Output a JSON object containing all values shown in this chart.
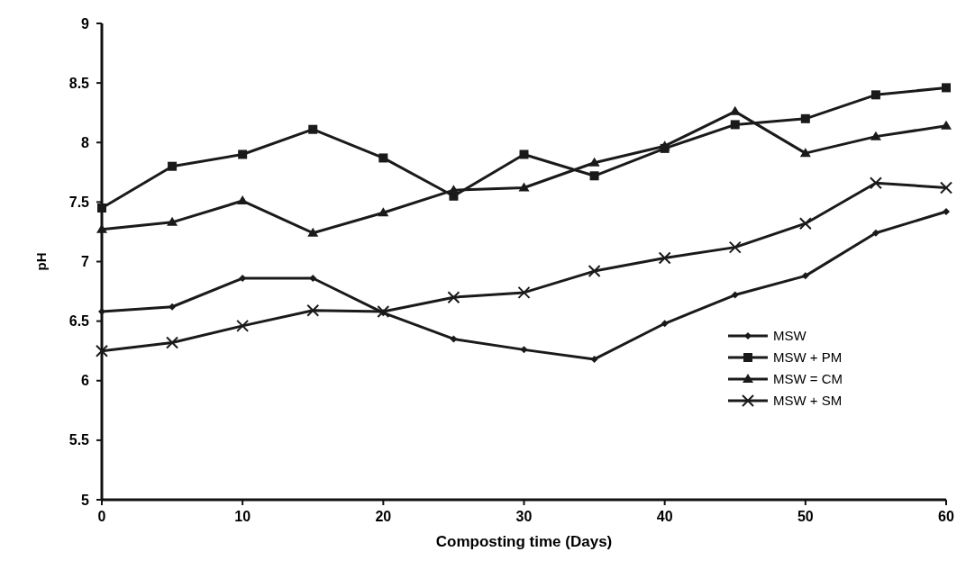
{
  "chart_data": {
    "type": "line",
    "xlabel": "Composting time (Days)",
    "ylabel": "pH",
    "x": [
      0,
      5,
      10,
      15,
      20,
      25,
      30,
      35,
      40,
      45,
      50,
      55,
      60
    ],
    "xlim": [
      0,
      60
    ],
    "xticks": [
      0,
      10,
      20,
      30,
      40,
      50,
      60
    ],
    "ylim": [
      5,
      9
    ],
    "yticks": [
      5,
      5.5,
      6,
      6.5,
      7,
      7.5,
      8,
      8.5,
      9
    ],
    "grid": false,
    "legend": "right",
    "line_style": "solid",
    "series": [
      {
        "name": "MSW",
        "color": "#1a1a1a",
        "marker": "diamond",
        "values": [
          6.58,
          6.62,
          6.86,
          6.86,
          6.57,
          6.35,
          6.26,
          6.18,
          6.48,
          6.72,
          6.88,
          7.24,
          7.42
        ]
      },
      {
        "name": "MSW + PM",
        "color": "#1a1a1a",
        "marker": "square",
        "values": [
          7.45,
          7.8,
          7.9,
          8.11,
          7.87,
          7.55,
          7.9,
          7.72,
          7.95,
          8.15,
          8.2,
          8.4,
          8.46
        ]
      },
      {
        "name": "MSW = CM",
        "color": "#1a1a1a",
        "marker": "triangle",
        "values": [
          7.27,
          7.33,
          7.51,
          7.24,
          7.41,
          7.6,
          7.62,
          7.83,
          7.97,
          8.26,
          7.91,
          8.05,
          8.14
        ]
      },
      {
        "name": "MSW + SM",
        "color": "#1a1a1a",
        "marker": "cross",
        "values": [
          6.25,
          6.32,
          6.46,
          6.59,
          6.58,
          6.7,
          6.74,
          6.92,
          7.03,
          7.12,
          7.32,
          7.66,
          7.62
        ]
      }
    ]
  }
}
